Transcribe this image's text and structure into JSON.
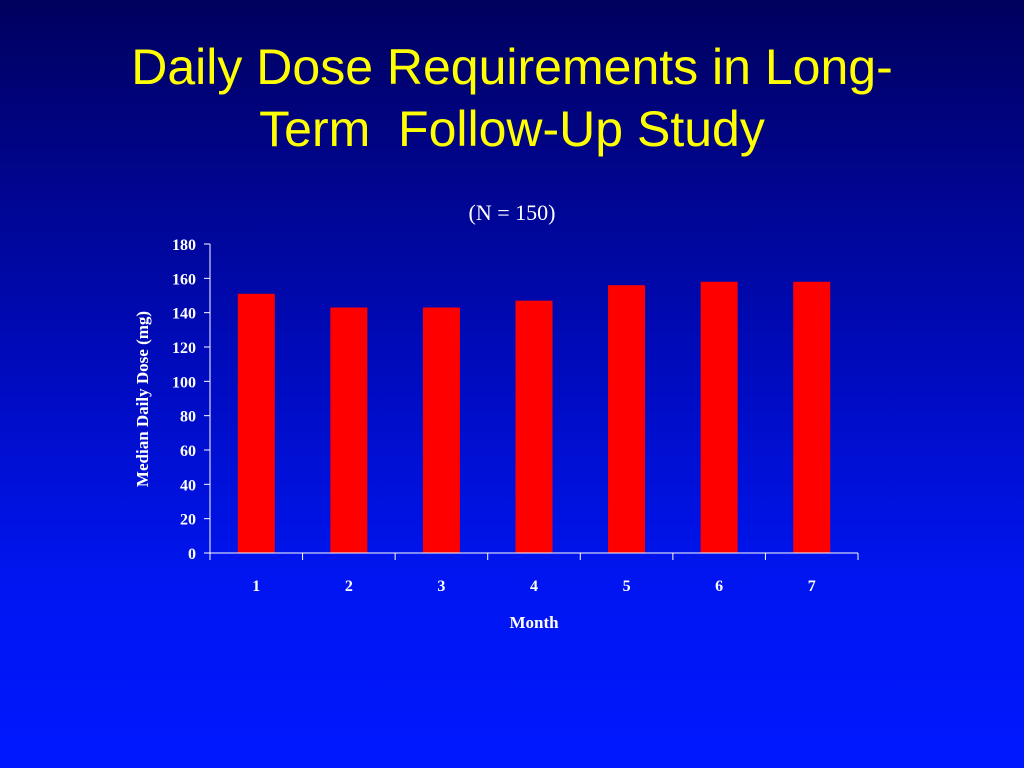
{
  "slide": {
    "title_line1": "Daily Dose Requirements in Long-",
    "title_line2": "Term  Follow-Up Study"
  },
  "colors": {
    "title": "#ffff00",
    "bar": "#ff0000",
    "axis_text": "#ffffff",
    "background_top": "#00005e",
    "background_bottom": "#0018ff"
  },
  "chart_data": {
    "type": "bar",
    "title": "(N = 150)",
    "xlabel": "Month",
    "ylabel": "Median Daily Dose (mg)",
    "categories": [
      "1",
      "2",
      "3",
      "4",
      "5",
      "6",
      "7"
    ],
    "values": [
      151,
      143,
      143,
      147,
      156,
      158,
      158
    ],
    "ylim": [
      0,
      180
    ],
    "yticks": [
      0,
      20,
      40,
      60,
      80,
      100,
      120,
      140,
      160,
      180
    ],
    "grid": false,
    "legend": "none"
  }
}
